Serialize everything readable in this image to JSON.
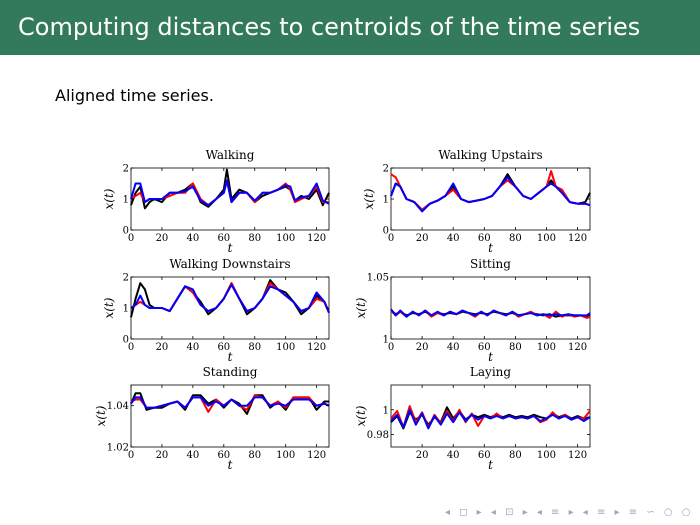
{
  "slide": {
    "title": "Computing distances to centroids of the time series",
    "subtitle": "Aligned time series.",
    "nav_symbols": "◂ ◻ ▸ ◂ ⊡ ▸ ◂ ≡ ▸ ◂ ≡ ▸ ≡ ∽ ○ ○"
  },
  "colors": {
    "title_bg": "#337a5c",
    "series1": "#000000",
    "series2": "#ff0000",
    "series3": "#0000ff"
  },
  "chart_data": [
    {
      "type": "line",
      "title": "Walking",
      "xlabel": "t",
      "ylabel": "x(t)",
      "xlim": [
        0,
        128
      ],
      "ylim": [
        0,
        2
      ],
      "xticks": [
        0,
        20,
        40,
        60,
        80,
        100,
        120
      ],
      "yticks": [
        0,
        1,
        2
      ],
      "ytick_labels": [
        "0",
        "1",
        "2"
      ],
      "x": [
        0,
        3,
        6,
        9,
        12,
        15,
        20,
        25,
        30,
        35,
        40,
        45,
        50,
        55,
        60,
        62,
        65,
        70,
        75,
        80,
        85,
        90,
        95,
        100,
        103,
        106,
        110,
        115,
        120,
        124,
        128
      ],
      "series": [
        {
          "name": "black",
          "values": [
            0.8,
            1.2,
            1.4,
            0.7,
            0.9,
            1.0,
            0.9,
            1.2,
            1.2,
            1.3,
            1.5,
            0.9,
            0.75,
            1.0,
            1.3,
            1.95,
            1.0,
            1.3,
            1.2,
            0.9,
            1.1,
            1.2,
            1.3,
            1.4,
            1.3,
            0.95,
            1.1,
            1.0,
            1.3,
            0.8,
            1.2
          ]
        },
        {
          "name": "red",
          "values": [
            1.0,
            1.1,
            1.2,
            0.9,
            1.0,
            1.0,
            1.0,
            1.1,
            1.2,
            1.2,
            1.5,
            1.0,
            0.8,
            1.0,
            1.2,
            1.6,
            0.9,
            1.2,
            1.2,
            0.9,
            1.2,
            1.2,
            1.3,
            1.5,
            1.3,
            0.9,
            1.0,
            1.1,
            1.4,
            0.9,
            0.9
          ]
        },
        {
          "name": "blue",
          "values": [
            1.0,
            1.5,
            1.5,
            0.9,
            1.0,
            1.0,
            1.0,
            1.2,
            1.2,
            1.25,
            1.4,
            0.95,
            0.8,
            1.0,
            1.2,
            1.6,
            0.9,
            1.2,
            1.2,
            0.95,
            1.2,
            1.2,
            1.3,
            1.45,
            1.4,
            0.95,
            1.05,
            1.1,
            1.5,
            0.95,
            0.85
          ]
        }
      ]
    },
    {
      "type": "line",
      "title": "Walking Upstairs",
      "xlabel": "t",
      "ylabel": "x(t)",
      "xlim": [
        0,
        128
      ],
      "ylim": [
        0,
        2
      ],
      "xticks": [
        0,
        20,
        40,
        60,
        80,
        100,
        120
      ],
      "yticks": [
        0,
        1,
        2
      ],
      "ytick_labels": [
        "0",
        "1",
        "2"
      ],
      "x": [
        0,
        3,
        6,
        10,
        15,
        20,
        25,
        30,
        35,
        40,
        45,
        50,
        55,
        60,
        65,
        70,
        75,
        80,
        85,
        90,
        95,
        100,
        103,
        106,
        110,
        115,
        120,
        125,
        128
      ],
      "series": [
        {
          "name": "black",
          "values": [
            1.1,
            1.5,
            1.4,
            1.0,
            0.9,
            0.65,
            0.85,
            0.95,
            1.1,
            1.4,
            1.0,
            0.9,
            0.95,
            1.0,
            1.1,
            1.4,
            1.8,
            1.4,
            1.1,
            1.0,
            1.2,
            1.4,
            1.6,
            1.4,
            1.2,
            0.9,
            0.85,
            0.9,
            1.2
          ]
        },
        {
          "name": "red",
          "values": [
            1.8,
            1.7,
            1.4,
            1.0,
            0.9,
            0.65,
            0.85,
            0.95,
            1.1,
            1.3,
            1.0,
            0.9,
            0.95,
            1.0,
            1.1,
            1.4,
            1.6,
            1.4,
            1.1,
            1.0,
            1.2,
            1.4,
            1.9,
            1.4,
            1.3,
            0.9,
            0.85,
            0.85,
            0.8
          ]
        },
        {
          "name": "blue",
          "values": [
            1.1,
            1.5,
            1.4,
            1.0,
            0.9,
            0.6,
            0.85,
            0.95,
            1.1,
            1.5,
            1.0,
            0.9,
            0.95,
            1.0,
            1.1,
            1.4,
            1.7,
            1.4,
            1.1,
            1.0,
            1.2,
            1.4,
            1.5,
            1.4,
            1.2,
            0.9,
            0.85,
            0.85,
            0.8
          ]
        }
      ]
    },
    {
      "type": "line",
      "title": "Walking Downstairs",
      "xlabel": "t",
      "ylabel": "x(t)",
      "xlim": [
        0,
        128
      ],
      "ylim": [
        0,
        2
      ],
      "xticks": [
        0,
        20,
        40,
        60,
        80,
        100,
        120
      ],
      "yticks": [
        0,
        1,
        2
      ],
      "ytick_labels": [
        "0",
        "1",
        "2"
      ],
      "x": [
        0,
        3,
        6,
        9,
        12,
        15,
        20,
        25,
        30,
        35,
        40,
        45,
        50,
        55,
        60,
        65,
        70,
        75,
        80,
        85,
        90,
        95,
        100,
        105,
        110,
        115,
        120,
        125,
        128
      ],
      "series": [
        {
          "name": "black",
          "values": [
            0.7,
            1.3,
            1.8,
            1.6,
            1.1,
            1.0,
            1.0,
            0.9,
            1.3,
            1.7,
            1.5,
            1.2,
            0.8,
            1.0,
            1.3,
            1.8,
            1.3,
            0.8,
            1.0,
            1.3,
            1.9,
            1.6,
            1.5,
            1.2,
            0.8,
            1.0,
            1.4,
            1.2,
            0.85
          ]
        },
        {
          "name": "red",
          "values": [
            1.0,
            1.1,
            1.2,
            1.1,
            1.0,
            1.0,
            1.0,
            0.9,
            1.3,
            1.7,
            1.5,
            1.1,
            0.9,
            1.0,
            1.3,
            1.8,
            1.3,
            0.9,
            1.0,
            1.3,
            1.8,
            1.6,
            1.4,
            1.2,
            0.9,
            1.0,
            1.3,
            1.2,
            0.85
          ]
        },
        {
          "name": "blue",
          "values": [
            1.0,
            1.1,
            1.4,
            1.1,
            1.0,
            1.0,
            1.0,
            0.9,
            1.3,
            1.7,
            1.6,
            1.1,
            0.9,
            1.0,
            1.3,
            1.75,
            1.3,
            0.9,
            1.0,
            1.3,
            1.7,
            1.6,
            1.4,
            1.2,
            0.9,
            1.0,
            1.5,
            1.2,
            0.85
          ]
        }
      ]
    },
    {
      "type": "line",
      "title": "Sitting",
      "xlabel": "t",
      "ylabel": "x(t)",
      "xlim": [
        0,
        128
      ],
      "ylim": [
        1,
        1.05
      ],
      "xticks": [
        0,
        20,
        40,
        60,
        80,
        100,
        120
      ],
      "yticks": [
        1,
        1.05
      ],
      "ytick_labels": [
        "1",
        "1.05"
      ],
      "x": [
        0,
        3,
        6,
        10,
        14,
        18,
        22,
        26,
        30,
        34,
        38,
        42,
        46,
        50,
        54,
        58,
        62,
        66,
        70,
        74,
        78,
        82,
        86,
        90,
        94,
        98,
        102,
        106,
        110,
        114,
        118,
        122,
        126,
        128
      ],
      "series": [
        {
          "name": "black",
          "values": [
            1.023,
            1.02,
            1.022,
            1.019,
            1.021,
            1.02,
            1.022,
            1.019,
            1.021,
            1.02,
            1.021,
            1.02,
            1.022,
            1.021,
            1.02,
            1.021,
            1.02,
            1.022,
            1.021,
            1.02,
            1.021,
            1.019,
            1.02,
            1.021,
            1.02,
            1.019,
            1.02,
            1.018,
            1.019,
            1.019,
            1.019,
            1.019,
            1.018,
            1.02
          ]
        },
        {
          "name": "red",
          "values": [
            1.023,
            1.019,
            1.022,
            1.018,
            1.022,
            1.019,
            1.023,
            1.018,
            1.021,
            1.019,
            1.022,
            1.02,
            1.023,
            1.021,
            1.018,
            1.022,
            1.019,
            1.023,
            1.021,
            1.019,
            1.022,
            1.018,
            1.02,
            1.022,
            1.019,
            1.02,
            1.017,
            1.022,
            1.018,
            1.02,
            1.018,
            1.019,
            1.017,
            1.018
          ]
        },
        {
          "name": "blue",
          "values": [
            1.024,
            1.019,
            1.023,
            1.018,
            1.022,
            1.019,
            1.023,
            1.019,
            1.022,
            1.019,
            1.022,
            1.02,
            1.023,
            1.021,
            1.019,
            1.022,
            1.019,
            1.023,
            1.021,
            1.019,
            1.022,
            1.019,
            1.02,
            1.021,
            1.019,
            1.02,
            1.019,
            1.02,
            1.019,
            1.02,
            1.019,
            1.019,
            1.019,
            1.021
          ]
        }
      ]
    },
    {
      "type": "line",
      "title": "Standing",
      "xlabel": "t",
      "ylabel": "x(t)",
      "xlim": [
        0,
        128
      ],
      "ylim": [
        1.02,
        1.05
      ],
      "xticks": [
        0,
        20,
        40,
        60,
        80,
        100,
        120
      ],
      "yticks": [
        1.02,
        1.04
      ],
      "ytick_labels": [
        "1.02",
        "1.04"
      ],
      "x": [
        0,
        3,
        6,
        10,
        15,
        20,
        25,
        30,
        35,
        40,
        45,
        50,
        55,
        60,
        65,
        70,
        75,
        80,
        85,
        90,
        95,
        100,
        105,
        110,
        115,
        120,
        125,
        128
      ],
      "series": [
        {
          "name": "black",
          "values": [
            1.041,
            1.046,
            1.046,
            1.038,
            1.039,
            1.039,
            1.041,
            1.042,
            1.038,
            1.045,
            1.045,
            1.041,
            1.043,
            1.039,
            1.043,
            1.041,
            1.036,
            1.045,
            1.045,
            1.039,
            1.042,
            1.038,
            1.044,
            1.044,
            1.044,
            1.038,
            1.042,
            1.042
          ]
        },
        {
          "name": "red",
          "values": [
            1.042,
            1.043,
            1.043,
            1.039,
            1.039,
            1.04,
            1.041,
            1.042,
            1.039,
            1.044,
            1.044,
            1.037,
            1.043,
            1.04,
            1.043,
            1.04,
            1.038,
            1.045,
            1.044,
            1.04,
            1.042,
            1.039,
            1.044,
            1.044,
            1.044,
            1.04,
            1.041,
            1.04
          ]
        },
        {
          "name": "blue",
          "values": [
            1.041,
            1.044,
            1.044,
            1.039,
            1.039,
            1.04,
            1.041,
            1.042,
            1.039,
            1.044,
            1.044,
            1.04,
            1.042,
            1.04,
            1.043,
            1.04,
            1.04,
            1.044,
            1.044,
            1.04,
            1.041,
            1.04,
            1.043,
            1.043,
            1.043,
            1.04,
            1.041,
            1.04
          ]
        }
      ]
    },
    {
      "type": "line",
      "title": "Laying",
      "xlabel": "t",
      "ylabel": "x(t)",
      "xlim": [
        0,
        128
      ],
      "ylim": [
        0.97,
        1.02
      ],
      "xticks": [
        20,
        40,
        60,
        80,
        100,
        120
      ],
      "yticks": [
        0.98,
        1
      ],
      "ytick_labels": [
        "0.98",
        "1"
      ],
      "x": [
        0,
        4,
        8,
        12,
        16,
        20,
        24,
        28,
        32,
        36,
        40,
        44,
        48,
        52,
        56,
        60,
        64,
        68,
        72,
        76,
        80,
        84,
        88,
        92,
        96,
        100,
        104,
        108,
        112,
        116,
        120,
        124,
        128
      ],
      "series": [
        {
          "name": "black",
          "values": [
            0.99,
            0.995,
            0.985,
            0.998,
            0.992,
            0.996,
            0.988,
            0.994,
            0.99,
            1.002,
            0.993,
            0.999,
            0.992,
            0.996,
            0.994,
            0.996,
            0.994,
            0.996,
            0.994,
            0.996,
            0.994,
            0.995,
            0.994,
            0.996,
            0.994,
            0.993,
            0.997,
            0.994,
            0.996,
            0.993,
            0.995,
            0.993,
            0.994
          ]
        },
        {
          "name": "red",
          "values": [
            0.993,
            0.999,
            0.986,
            1.003,
            0.99,
            0.998,
            0.986,
            0.996,
            0.989,
            0.999,
            0.991,
            1.0,
            0.99,
            0.997,
            0.987,
            0.995,
            0.993,
            0.997,
            0.993,
            0.995,
            0.993,
            0.994,
            0.993,
            0.995,
            0.99,
            0.992,
            0.998,
            0.993,
            0.996,
            0.992,
            0.994,
            0.993,
            0.999
          ]
        },
        {
          "name": "blue",
          "values": [
            0.991,
            0.996,
            0.986,
            1.0,
            0.988,
            0.997,
            0.985,
            0.995,
            0.988,
            0.997,
            0.99,
            0.998,
            0.991,
            0.996,
            0.992,
            0.995,
            0.993,
            0.995,
            0.993,
            0.995,
            0.993,
            0.994,
            0.993,
            0.995,
            0.991,
            0.993,
            0.996,
            0.993,
            0.995,
            0.992,
            0.994,
            0.991,
            0.994
          ]
        }
      ]
    }
  ]
}
